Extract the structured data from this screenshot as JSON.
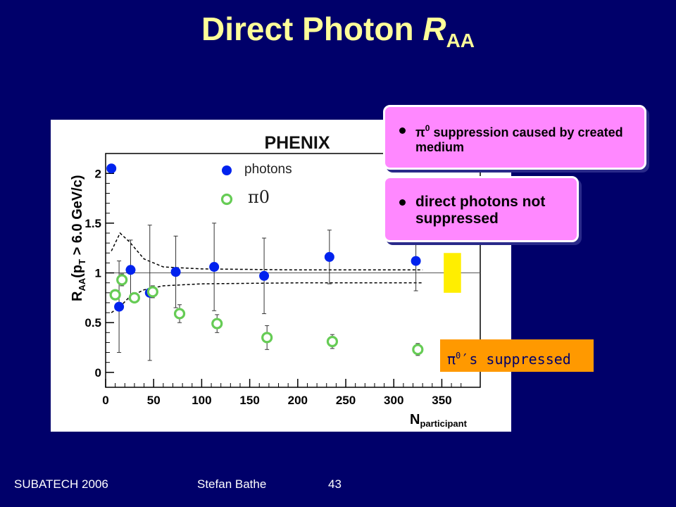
{
  "slide": {
    "title_main": "Direct Photon ",
    "title_R": "R",
    "title_sub": "AA",
    "footer_left": "SUBATECH 2006",
    "footer_mid": "Stefan Bathe",
    "footer_page": "43"
  },
  "callouts": {
    "c1_pi": "π",
    "c1_sup": "0",
    "c1_text": " suppression caused by created medium",
    "c2_text": "direct photons not suppressed",
    "pi0s_pi": "π",
    "pi0s_sup": "0",
    "pi0s_text": "′s suppressed"
  },
  "colors": {
    "background": "#00006a",
    "title": "#ffff99",
    "photons": "#0022ee",
    "pi0": "#66cc55",
    "callout": "#ff88ff",
    "pi0s_box": "#ff9900",
    "syst_box": "#ffee00"
  },
  "chart_data": {
    "type": "scatter",
    "logo": "PHENIX",
    "ylabel_parts": [
      "R",
      "AA",
      "(p",
      "T",
      " > 6.0 GeV/c)"
    ],
    "xlabel_main": "N",
    "xlabel_sub": "participant",
    "xlim": [
      0,
      390
    ],
    "ylim": [
      -0.15,
      2.2
    ],
    "xticks": [
      0,
      50,
      100,
      150,
      200,
      250,
      300,
      350
    ],
    "yticks": [
      0,
      0.5,
      1,
      1.5,
      2
    ],
    "reference_line": 1,
    "legend": {
      "photons_label": "photons",
      "pi0_label": "π0",
      "position": "top-center"
    },
    "series": [
      {
        "name": "photons",
        "marker": "filled-circle",
        "x": [
          6,
          14,
          26,
          46,
          73,
          113,
          165,
          233,
          323
        ],
        "y": [
          2.05,
          0.66,
          1.03,
          0.8,
          1.01,
          1.06,
          0.97,
          1.16,
          1.12
        ],
        "err": [
          0.0,
          0.46,
          0.3,
          0.68,
          0.36,
          0.44,
          0.38,
          0.27,
          0.3
        ]
      },
      {
        "name": "π0",
        "marker": "open-circle",
        "x": [
          10,
          17,
          30,
          49,
          77,
          116,
          168,
          236,
          325
        ],
        "y": [
          0.78,
          0.93,
          0.75,
          0.81,
          0.59,
          0.49,
          0.35,
          0.31,
          0.23
        ],
        "err": [
          0.04,
          0.06,
          0.05,
          0.06,
          0.09,
          0.09,
          0.12,
          0.07,
          0.06
        ]
      }
    ],
    "envelope_upper": [
      [
        6,
        1.22
      ],
      [
        15,
        1.4
      ],
      [
        25,
        1.31
      ],
      [
        40,
        1.14
      ],
      [
        60,
        1.06
      ],
      [
        100,
        1.04
      ],
      [
        200,
        1.03
      ],
      [
        330,
        1.03
      ]
    ],
    "envelope_lower": [
      [
        6,
        0.6
      ],
      [
        15,
        0.66
      ],
      [
        25,
        0.76
      ],
      [
        40,
        0.83
      ],
      [
        60,
        0.87
      ],
      [
        100,
        0.89
      ],
      [
        200,
        0.9
      ],
      [
        330,
        0.9
      ]
    ],
    "syst_box": {
      "x": [
        352,
        370
      ],
      "y": [
        0.8,
        1.2
      ]
    }
  }
}
